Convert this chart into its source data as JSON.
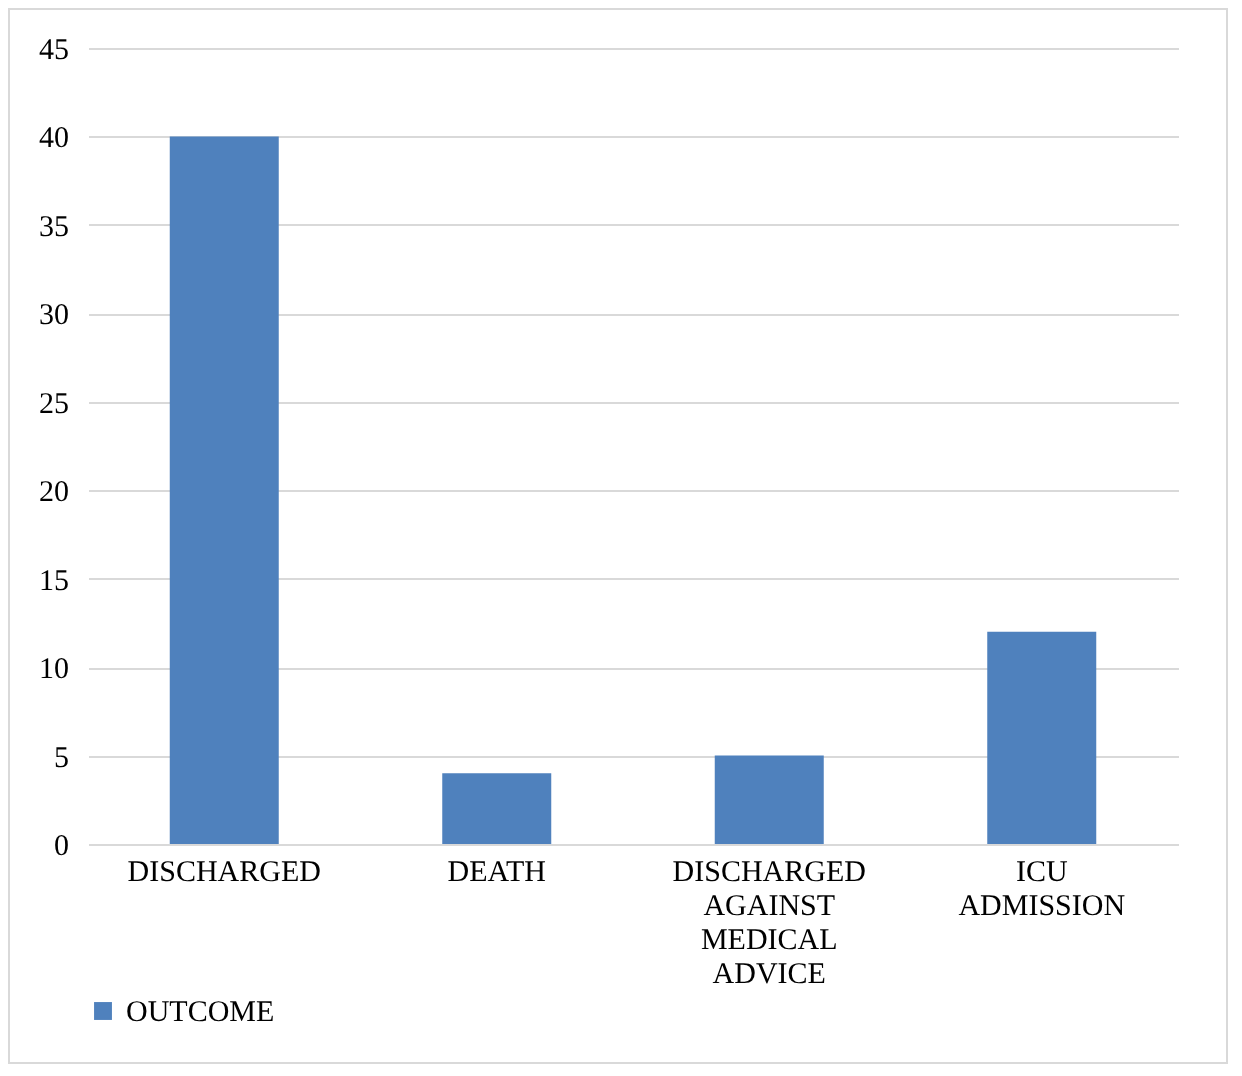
{
  "chart_data": {
    "type": "bar",
    "categories": [
      "DISCHARGED",
      "DEATH",
      "DISCHARGED AGAINST MEDICAL ADVICE",
      "ICU ADMISSION"
    ],
    "series": [
      {
        "name": "OUTCOME",
        "color": "#4f81bd",
        "values": [
          40,
          4,
          5,
          12
        ]
      }
    ],
    "ylim": [
      0,
      45
    ],
    "yticks": [
      0,
      5,
      10,
      15,
      20,
      25,
      30,
      35,
      40,
      45
    ],
    "grid": "y",
    "legend": "bottom"
  }
}
